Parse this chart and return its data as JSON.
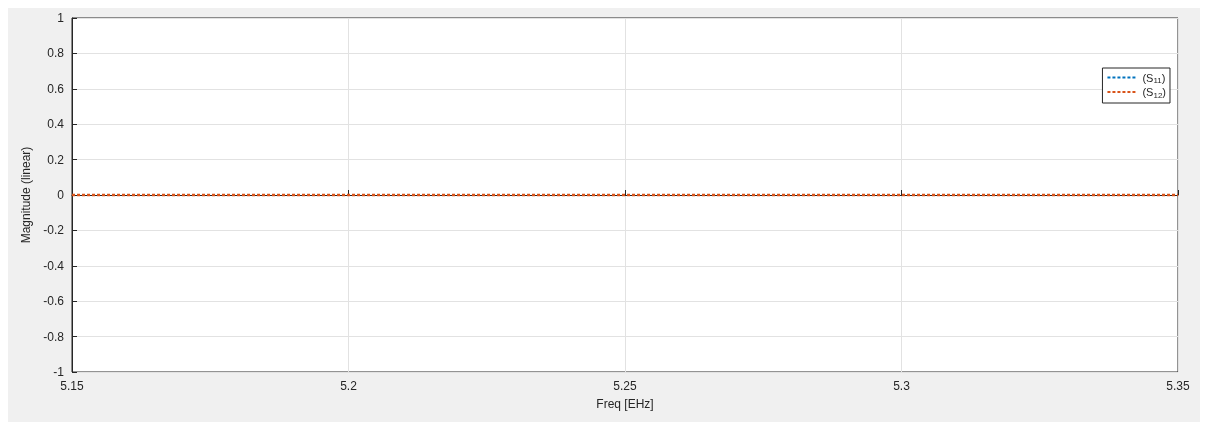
{
  "chart_data": {
    "type": "line",
    "xlabel": "Freq [EHz]",
    "ylabel": "Magnitude (linear)",
    "x": [
      5.15,
      5.35
    ],
    "series": [
      {
        "name": "(S$_{11}$)",
        "color": "#0072bd",
        "values": [
          null,
          null
        ]
      },
      {
        "name": "(S$_{12}$)",
        "color": "#d95319",
        "values": [
          0,
          0
        ]
      }
    ],
    "xlim": [
      5.15,
      5.35
    ],
    "xticks": [
      5.15,
      5.2,
      5.25,
      5.3,
      5.35
    ],
    "ylim": [
      -1,
      1
    ],
    "yticks": [
      -1,
      -0.8,
      -0.6,
      -0.4,
      -0.2,
      0,
      0.2,
      0.4,
      0.6,
      0.8,
      1
    ],
    "grid": true,
    "legend": "top right",
    "marker": "none",
    "line_style": "dotted"
  }
}
